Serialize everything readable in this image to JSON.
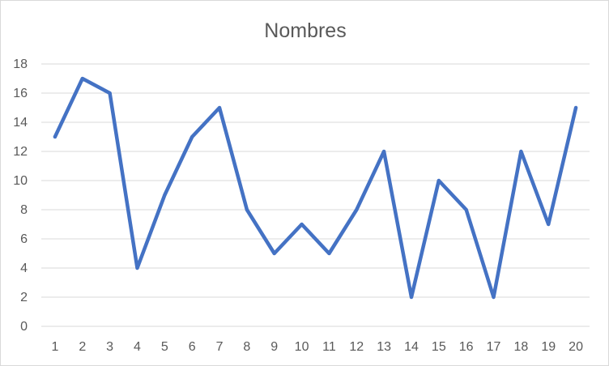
{
  "chart_data": {
    "type": "line",
    "title": "Nombres",
    "xlabel": "",
    "ylabel": "",
    "categories": [
      "1",
      "2",
      "3",
      "4",
      "5",
      "6",
      "7",
      "8",
      "9",
      "10",
      "11",
      "12",
      "13",
      "14",
      "15",
      "16",
      "17",
      "18",
      "19",
      "20"
    ],
    "series": [
      {
        "values": [
          13,
          17,
          16,
          4,
          9,
          13,
          15,
          8,
          5,
          7,
          5,
          8,
          12,
          2,
          10,
          8,
          2,
          12,
          7,
          15
        ]
      }
    ],
    "ylim": [
      0,
      18
    ],
    "yticks": [
      "0",
      "2",
      "4",
      "6",
      "8",
      "10",
      "12",
      "14",
      "16",
      "18"
    ],
    "grid": true,
    "legend": "none",
    "colors": {
      "line": "#4472C4",
      "grid": "#d9d9d9",
      "text": "#595959"
    }
  }
}
